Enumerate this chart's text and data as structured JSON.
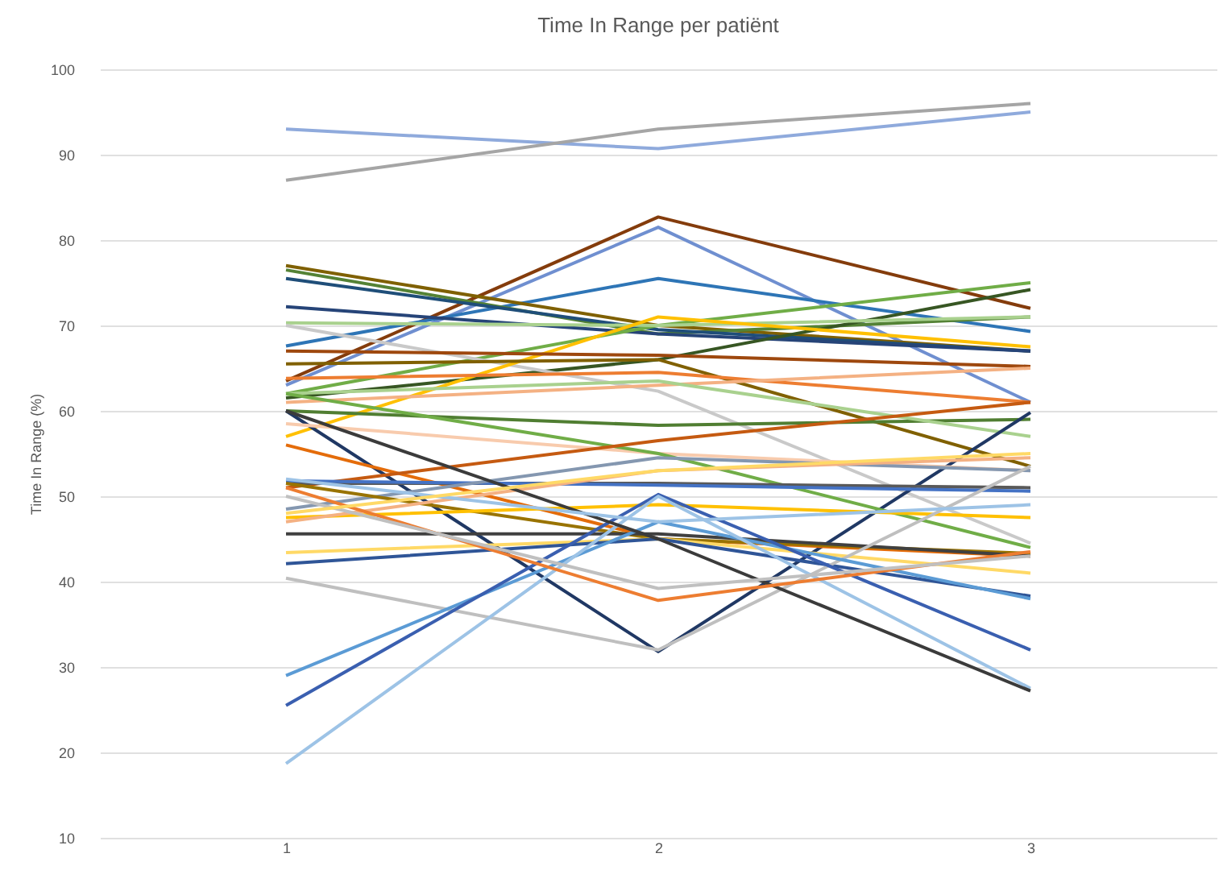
{
  "chart_data": {
    "type": "line",
    "title": "Time In Range per patiënt",
    "ylabel": "Time In Range (%)",
    "categories": [
      "1",
      "2",
      "3"
    ],
    "ylim": [
      10,
      100
    ],
    "yticks": [
      10,
      20,
      30,
      40,
      50,
      60,
      70,
      80,
      90,
      100
    ],
    "grid": "y",
    "line_style": "solid",
    "series": [
      {
        "color": "#8faadc",
        "values": [
          93,
          90.7,
          95
        ]
      },
      {
        "color": "#a5a5a5",
        "values": [
          87,
          93,
          96
        ]
      },
      {
        "color": "#843c0c",
        "values": [
          63.5,
          82.7,
          72
        ]
      },
      {
        "color": "#6f8fd0",
        "values": [
          63,
          81.5,
          61
        ]
      },
      {
        "color": "#2e75b6",
        "values": [
          67.6,
          75.5,
          69.3
        ]
      },
      {
        "color": "#7f6000",
        "values": [
          77,
          70,
          67
        ]
      },
      {
        "color": "#548235",
        "values": [
          76.5,
          69,
          71
        ]
      },
      {
        "color": "#1f4e79",
        "values": [
          75.5,
          69.5,
          67
        ]
      },
      {
        "color": "#264478",
        "values": [
          72.2,
          69,
          67
        ]
      },
      {
        "color": "#70ad47",
        "values": [
          62,
          70,
          75
        ]
      },
      {
        "color": "#375623",
        "values": [
          61.5,
          66,
          74.2
        ]
      },
      {
        "color": "#a9d18e",
        "values": [
          70.3,
          70,
          71
        ]
      },
      {
        "color": "#c9c9c9",
        "values": [
          70,
          62.3,
          44.5
        ]
      },
      {
        "color": "#ffc000",
        "values": [
          57,
          71,
          67.5
        ]
      },
      {
        "color": "#9e480e",
        "values": [
          67,
          66.5,
          65.2
        ]
      },
      {
        "color": "#806000",
        "values": [
          65.5,
          66,
          53.5
        ]
      },
      {
        "color": "#ed7d31",
        "values": [
          63.8,
          64.5,
          61
        ]
      },
      {
        "color": "#f4b183",
        "values": [
          61,
          63,
          65
        ]
      },
      {
        "color": "#507e32",
        "values": [
          60,
          58.3,
          59
        ]
      },
      {
        "color": "#a9d18e",
        "values": [
          62,
          63.5,
          57
        ]
      },
      {
        "color": "#203864",
        "values": [
          60,
          31.8,
          59.8
        ]
      },
      {
        "color": "#e46c0a",
        "values": [
          56,
          45,
          43
        ]
      },
      {
        "color": "#f8cbad",
        "values": [
          58.5,
          55,
          53
        ]
      },
      {
        "color": "#70ad47",
        "values": [
          62,
          55,
          44
        ]
      },
      {
        "color": "#c55a11",
        "values": [
          51,
          56.5,
          61
        ]
      },
      {
        "color": "#595959",
        "values": [
          51.5,
          51.5,
          51
        ]
      },
      {
        "color": "#4472c4",
        "values": [
          51.8,
          51.3,
          50.6
        ]
      },
      {
        "color": "#8497b0",
        "values": [
          48.5,
          54.5,
          53
        ]
      },
      {
        "color": "#997300",
        "values": [
          51.5,
          45,
          43.3
        ]
      },
      {
        "color": "#ffc000",
        "values": [
          47.5,
          49,
          47.5
        ]
      },
      {
        "color": "#f4b183",
        "values": [
          47,
          53,
          54.5
        ]
      },
      {
        "color": "#404040",
        "values": [
          45.6,
          45.6,
          43
        ]
      },
      {
        "color": "#ffd966",
        "values": [
          43.4,
          45,
          41
        ]
      },
      {
        "color": "#2f5597",
        "values": [
          42.1,
          45,
          38.3
        ]
      },
      {
        "color": "#bfbfbf",
        "values": [
          40.4,
          32,
          53.5
        ]
      },
      {
        "color": "#5b9bd5",
        "values": [
          29,
          47,
          38
        ]
      },
      {
        "color": "#3a5fb0",
        "values": [
          25.5,
          50.2,
          32
        ]
      },
      {
        "color": "#9dc3e6",
        "values": [
          18.7,
          50,
          27.5
        ]
      },
      {
        "color": "#3b3b3b",
        "values": [
          60,
          45,
          27.2
        ]
      },
      {
        "color": "#ed7d31",
        "values": [
          51,
          37.8,
          43.5
        ]
      },
      {
        "color": "#c0c0c0",
        "values": [
          50,
          39.2,
          43
        ]
      },
      {
        "color": "#9dc3e6",
        "values": [
          52,
          47,
          49
        ]
      },
      {
        "color": "#ffd966",
        "values": [
          48,
          53,
          55
        ]
      }
    ]
  }
}
